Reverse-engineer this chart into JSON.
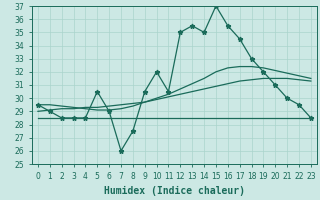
{
  "xlabel": "Humidex (Indice chaleur)",
  "ylabel": "",
  "background_color": "#cce8e4",
  "grid_color": "#aad4cc",
  "line_color": "#1a6b5a",
  "x_values": [
    0,
    1,
    2,
    3,
    4,
    5,
    6,
    7,
    8,
    9,
    10,
    11,
    12,
    13,
    14,
    15,
    16,
    17,
    18,
    19,
    20,
    21,
    22,
    23
  ],
  "y_main": [
    29.5,
    29.0,
    28.5,
    28.5,
    28.5,
    30.5,
    29.0,
    26.0,
    27.5,
    30.5,
    32.0,
    30.5,
    35.0,
    35.5,
    35.0,
    37.0,
    35.5,
    34.5,
    33.0,
    32.0,
    31.0,
    30.0,
    29.5,
    28.5
  ],
  "y_line_flat": [
    28.5,
    28.5,
    28.5,
    28.5,
    28.5,
    28.5,
    28.5,
    28.5,
    28.5,
    28.5,
    28.5,
    28.5,
    28.5,
    28.5,
    28.5,
    28.5,
    28.5,
    28.5,
    28.5,
    28.5,
    28.5,
    28.5,
    28.5,
    28.5
  ],
  "y_line_rise1": [
    29.0,
    29.1,
    29.2,
    29.2,
    29.3,
    29.3,
    29.4,
    29.5,
    29.6,
    29.7,
    29.9,
    30.1,
    30.3,
    30.5,
    30.7,
    30.9,
    31.1,
    31.3,
    31.4,
    31.5,
    31.5,
    31.5,
    31.4,
    31.3
  ],
  "y_line_rise2": [
    29.5,
    29.5,
    29.4,
    29.3,
    29.2,
    29.1,
    29.1,
    29.2,
    29.4,
    29.7,
    30.0,
    30.3,
    30.7,
    31.1,
    31.5,
    32.0,
    32.3,
    32.4,
    32.4,
    32.3,
    32.1,
    31.9,
    31.7,
    31.5
  ],
  "ylim": [
    25,
    37
  ],
  "xlim": [
    -0.5,
    23.5
  ],
  "yticks": [
    25,
    26,
    27,
    28,
    29,
    30,
    31,
    32,
    33,
    34,
    35,
    36,
    37
  ],
  "xticks": [
    0,
    1,
    2,
    3,
    4,
    5,
    6,
    7,
    8,
    9,
    10,
    11,
    12,
    13,
    14,
    15,
    16,
    17,
    18,
    19,
    20,
    21,
    22,
    23
  ],
  "xtick_labels": [
    "0",
    "1",
    "2",
    "3",
    "4",
    "5",
    "6",
    "7",
    "8",
    "9",
    "10",
    "11",
    "12",
    "13",
    "14",
    "15",
    "16",
    "17",
    "18",
    "19",
    "20",
    "21",
    "22",
    "23"
  ],
  "marker": "*",
  "markersize": 3.5,
  "linewidth": 0.9,
  "xlabel_fontsize": 7,
  "tick_fontsize": 5.5
}
